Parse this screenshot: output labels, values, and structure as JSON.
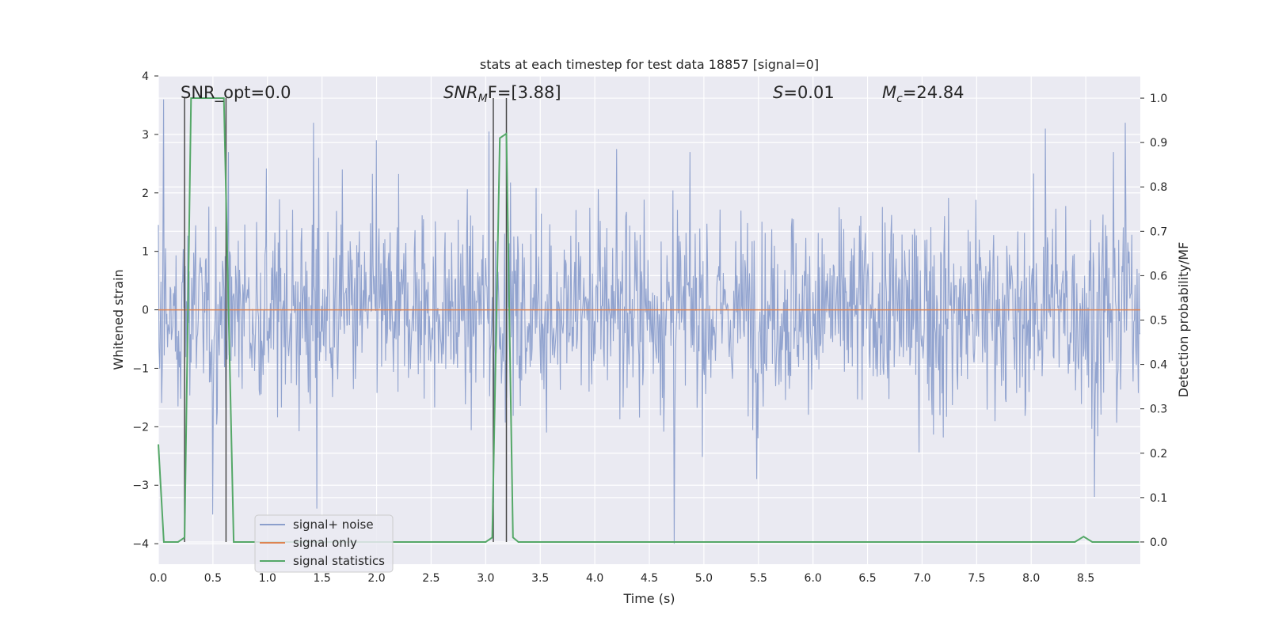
{
  "chart_data": {
    "type": "line",
    "title": "stats at each timestep for test data 18857 [signal=0]",
    "xlabel": "Time (s)",
    "ylabel": "Whitened strain",
    "y2label": "Detection probability/MF",
    "xlim": [
      0.0,
      9.0
    ],
    "ylim": [
      -4.35,
      4.0
    ],
    "y2lim": [
      -0.05,
      1.05
    ],
    "xticks": [
      "0.0",
      "0.5",
      "1.0",
      "1.5",
      "2.0",
      "2.5",
      "3.0",
      "3.5",
      "4.0",
      "4.5",
      "5.0",
      "5.5",
      "6.0",
      "6.5",
      "7.0",
      "7.5",
      "8.0",
      "8.5"
    ],
    "yticks": [
      "4",
      "3",
      "2",
      "1",
      "0",
      "−1",
      "−2",
      "−3",
      "−4"
    ],
    "y2ticks": [
      "1.0",
      "0.9",
      "0.8",
      "0.7",
      "0.6",
      "0.5",
      "0.4",
      "0.3",
      "0.2",
      "0.1",
      "0.0"
    ],
    "legend_position": "lower-left",
    "colors": {
      "noise": "#8c9fcc",
      "signal": "#dd8452",
      "stats": "#55a868",
      "markers": "#4a4a4a",
      "background": "#eaeaf2",
      "grid": "#ffffff"
    },
    "series": [
      {
        "name": "signal+ noise",
        "axis": "left",
        "description_values": "noisy whitened strain between about -4.0 and 3.6",
        "peak_highs": [
          [
            0.05,
            3.6
          ],
          [
            1.42,
            3.2
          ],
          [
            2.0,
            2.9
          ],
          [
            3.03,
            3.05
          ],
          [
            4.2,
            2.75
          ],
          [
            8.13,
            3.1
          ],
          [
            8.86,
            3.2
          ]
        ],
        "peak_lows": [
          [
            0.5,
            -3.5
          ],
          [
            1.45,
            -3.4
          ],
          [
            3.07,
            -3.3
          ],
          [
            4.73,
            -4.0
          ],
          [
            8.58,
            -3.2
          ]
        ]
      },
      {
        "name": "signal only",
        "axis": "left",
        "x": [
          0.0,
          9.0
        ],
        "y": [
          0.0,
          0.0
        ]
      },
      {
        "name": "signal statistics",
        "axis": "right",
        "x": [
          0.0,
          0.05,
          0.18,
          0.24,
          0.3,
          0.6,
          0.69,
          3.0,
          3.06,
          3.13,
          3.19,
          3.25,
          3.3,
          8.4,
          8.48,
          8.56,
          8.99
        ],
        "y": [
          0.22,
          0.0,
          0.0,
          0.01,
          1.0,
          1.0,
          0.0,
          0.0,
          0.01,
          0.91,
          0.92,
          0.01,
          0.0,
          0.0,
          0.012,
          0.0,
          0.0
        ]
      }
    ],
    "vertical_markers": [
      0.24,
      0.62,
      3.07,
      3.19
    ],
    "annotations": [
      {
        "text": "SNR_opt=0.0",
        "x": 0.2
      },
      {
        "text": "F=[3.88]",
        "x": 2.6,
        "prefix_italic": "SNR",
        "subscript": "M"
      },
      {
        "text": "=0.01",
        "x": 5.6,
        "prefix_italic": "S"
      },
      {
        "text": "=24.84",
        "x": 6.6,
        "prefix_italic": "M",
        "subscript": "c"
      }
    ]
  }
}
